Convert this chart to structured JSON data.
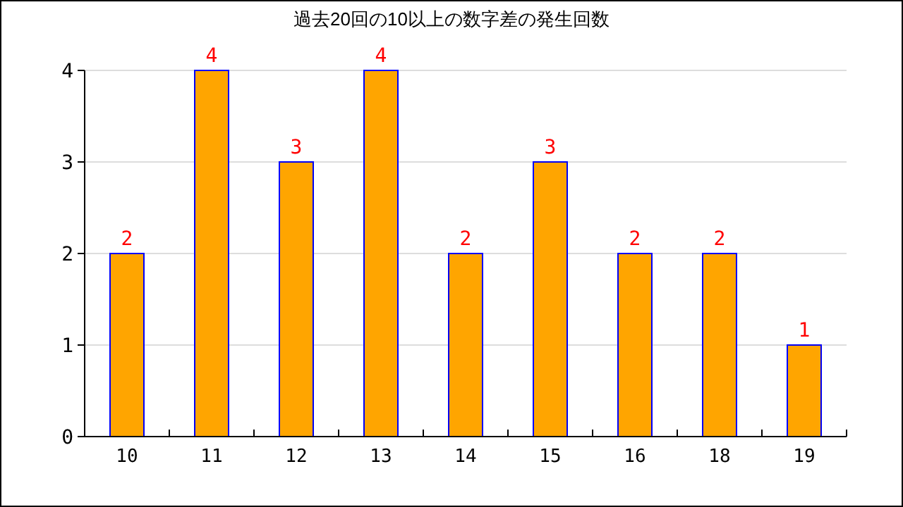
{
  "chart_data": {
    "type": "bar",
    "title": "過去20回の10以上の数字差の発生回数",
    "categories": [
      "10",
      "11",
      "12",
      "13",
      "14",
      "15",
      "16",
      "18",
      "19"
    ],
    "values": [
      2,
      4,
      3,
      4,
      2,
      3,
      2,
      2,
      1
    ],
    "color": "#ffa500",
    "ylim": [
      0,
      4
    ],
    "yticks": [
      0,
      1,
      2,
      3,
      4
    ],
    "grid": "y",
    "data_labels": true
  }
}
